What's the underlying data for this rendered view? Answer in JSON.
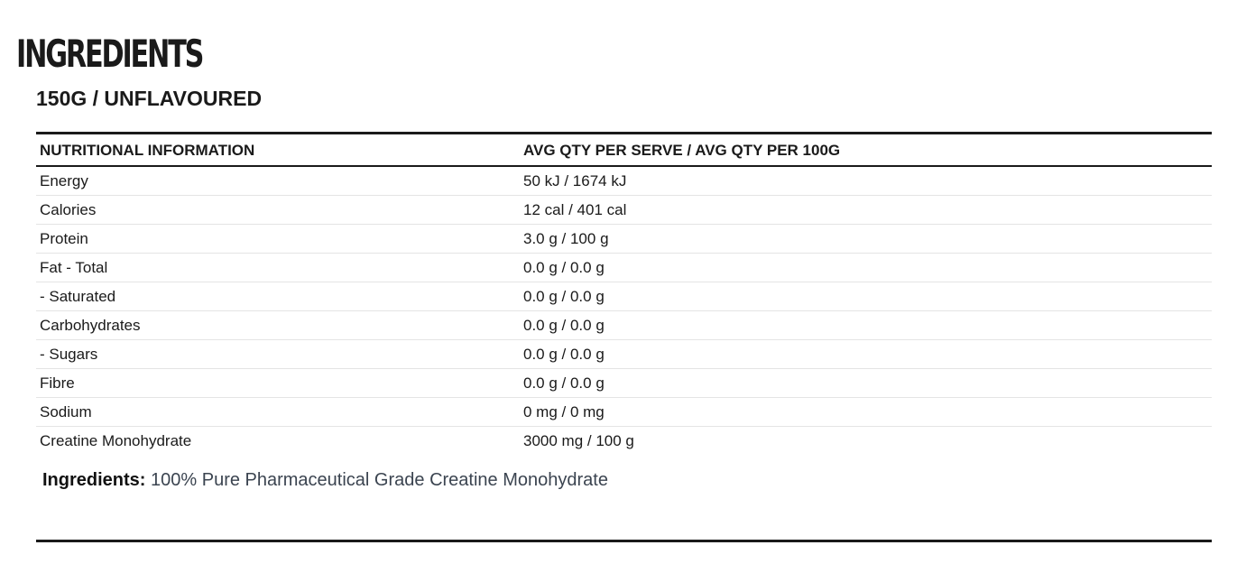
{
  "header": {
    "title": "INGREDIENTS",
    "subtitle": "150G / UNFLAVOURED"
  },
  "table": {
    "columns": [
      "NUTRITIONAL INFORMATION",
      "AVG QTY PER SERVE / AVG QTY PER 100G"
    ],
    "rows": [
      [
        "Energy",
        "50 kJ / 1674 kJ"
      ],
      [
        "Calories",
        "12 cal / 401 cal"
      ],
      [
        "Protein",
        "3.0 g / 100 g"
      ],
      [
        "Fat - Total",
        "0.0 g / 0.0 g"
      ],
      [
        "- Saturated",
        "0.0 g / 0.0 g"
      ],
      [
        "Carbohydrates",
        "0.0 g / 0.0 g"
      ],
      [
        "- Sugars",
        "0.0 g / 0.0 g"
      ],
      [
        "Fibre",
        "0.0 g / 0.0 g"
      ],
      [
        "Sodium",
        "0 mg / 0 mg"
      ],
      [
        "Creatine Monohydrate",
        "3000 mg / 100 g"
      ]
    ]
  },
  "ingredients": {
    "label": "Ingredients:",
    "text": "100% Pure Pharmaceutical Grade Creatine Monohydrate"
  }
}
